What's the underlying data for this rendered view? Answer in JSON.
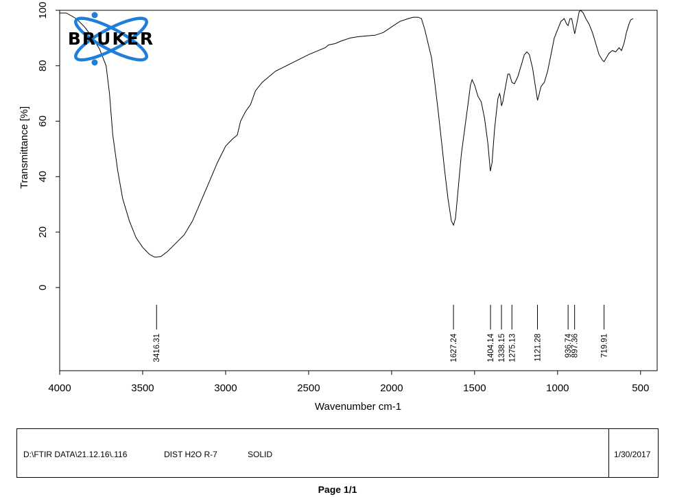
{
  "logo": {
    "text": "BRUKER",
    "colors": {
      "orbit": "#1f7fd8",
      "text": "#000000"
    }
  },
  "chart_data": {
    "type": "line",
    "title": "",
    "xlabel": "Wavenumber cm-1",
    "ylabel": "Transmittance [%]",
    "xlim": [
      4000,
      400
    ],
    "ylim": [
      -30,
      100
    ],
    "x_ticks": [
      4000,
      3500,
      3000,
      2500,
      2000,
      1500,
      1000,
      500
    ],
    "y_ticks": [
      0,
      20,
      40,
      60,
      80,
      100
    ],
    "grid": false,
    "series": [
      {
        "color": "#000000",
        "points": [
          [
            4000,
            99
          ],
          [
            3960,
            99
          ],
          [
            3900,
            97
          ],
          [
            3850,
            94
          ],
          [
            3800,
            90
          ],
          [
            3760,
            86
          ],
          [
            3720,
            80
          ],
          [
            3700,
            70
          ],
          [
            3680,
            55
          ],
          [
            3650,
            42
          ],
          [
            3620,
            32
          ],
          [
            3580,
            24
          ],
          [
            3540,
            18
          ],
          [
            3500,
            14.5
          ],
          [
            3460,
            12
          ],
          [
            3430,
            11
          ],
          [
            3416,
            11
          ],
          [
            3390,
            11.2
          ],
          [
            3350,
            13
          ],
          [
            3300,
            16
          ],
          [
            3250,
            19
          ],
          [
            3200,
            24
          ],
          [
            3150,
            31
          ],
          [
            3100,
            38
          ],
          [
            3050,
            45
          ],
          [
            3000,
            51
          ],
          [
            2960,
            53.5
          ],
          [
            2930,
            55
          ],
          [
            2910,
            60
          ],
          [
            2880,
            63.5
          ],
          [
            2850,
            66
          ],
          [
            2820,
            71
          ],
          [
            2780,
            74
          ],
          [
            2700,
            78
          ],
          [
            2600,
            81
          ],
          [
            2500,
            84
          ],
          [
            2400,
            86.5
          ],
          [
            2380,
            87.5
          ],
          [
            2340,
            88
          ],
          [
            2300,
            89
          ],
          [
            2250,
            90
          ],
          [
            2200,
            90.5
          ],
          [
            2100,
            91
          ],
          [
            2050,
            92
          ],
          [
            2000,
            94
          ],
          [
            1950,
            96
          ],
          [
            1900,
            97
          ],
          [
            1870,
            97.5
          ],
          [
            1840,
            97.5
          ],
          [
            1820,
            97
          ],
          [
            1800,
            93
          ],
          [
            1780,
            88
          ],
          [
            1760,
            83
          ],
          [
            1740,
            74
          ],
          [
            1720,
            64
          ],
          [
            1700,
            53
          ],
          [
            1680,
            42
          ],
          [
            1660,
            32
          ],
          [
            1640,
            24
          ],
          [
            1627,
            22.5
          ],
          [
            1615,
            25
          ],
          [
            1600,
            35
          ],
          [
            1580,
            48
          ],
          [
            1560,
            57
          ],
          [
            1540,
            66
          ],
          [
            1525,
            73
          ],
          [
            1515,
            75
          ],
          [
            1500,
            73
          ],
          [
            1480,
            69
          ],
          [
            1460,
            67
          ],
          [
            1440,
            61
          ],
          [
            1420,
            52
          ],
          [
            1405,
            42
          ],
          [
            1395,
            45
          ],
          [
            1380,
            57
          ],
          [
            1360,
            68
          ],
          [
            1350,
            70
          ],
          [
            1345,
            69
          ],
          [
            1338,
            65.5
          ],
          [
            1330,
            67
          ],
          [
            1315,
            72
          ],
          [
            1300,
            77
          ],
          [
            1290,
            77
          ],
          [
            1275,
            74
          ],
          [
            1260,
            73.5
          ],
          [
            1240,
            76
          ],
          [
            1220,
            80
          ],
          [
            1200,
            84
          ],
          [
            1185,
            85
          ],
          [
            1170,
            84
          ],
          [
            1150,
            79
          ],
          [
            1135,
            73
          ],
          [
            1121,
            67.5
          ],
          [
            1110,
            70
          ],
          [
            1100,
            72.5
          ],
          [
            1080,
            74
          ],
          [
            1060,
            78
          ],
          [
            1040,
            84
          ],
          [
            1020,
            90
          ],
          [
            1000,
            93
          ],
          [
            980,
            96
          ],
          [
            960,
            97
          ],
          [
            945,
            95
          ],
          [
            937,
            94.5
          ],
          [
            925,
            97
          ],
          [
            915,
            97
          ],
          [
            905,
            94
          ],
          [
            897,
            91.5
          ],
          [
            885,
            95
          ],
          [
            870,
            99.5
          ],
          [
            860,
            100
          ],
          [
            845,
            99
          ],
          [
            830,
            97
          ],
          [
            810,
            95
          ],
          [
            790,
            92
          ],
          [
            770,
            88
          ],
          [
            750,
            84
          ],
          [
            730,
            82
          ],
          [
            720,
            81.5
          ],
          [
            705,
            83
          ],
          [
            690,
            84.5
          ],
          [
            670,
            85.5
          ],
          [
            650,
            85
          ],
          [
            630,
            86.5
          ],
          [
            615,
            85.5
          ],
          [
            600,
            88
          ],
          [
            585,
            92
          ],
          [
            570,
            95
          ],
          [
            560,
            96.5
          ],
          [
            545,
            97
          ]
        ]
      }
    ],
    "peak_labels": [
      "3416.31",
      "1627.24",
      "1404.14",
      "1338.15",
      "1275.13",
      "1121.28",
      "936.74",
      "897.36",
      "719.91"
    ],
    "peak_positions": [
      3416.31,
      1627.24,
      1404.14,
      1338.15,
      1275.13,
      1121.28,
      936.74,
      897.36,
      719.91
    ]
  },
  "footer": {
    "file_path": "D:\\FTIR DATA\\21.12.16\\.116",
    "sample_name": "DIST H2O R-7",
    "sample_form": "SOLID",
    "date": "1/30/2017"
  },
  "page_label": "Page 1/1"
}
